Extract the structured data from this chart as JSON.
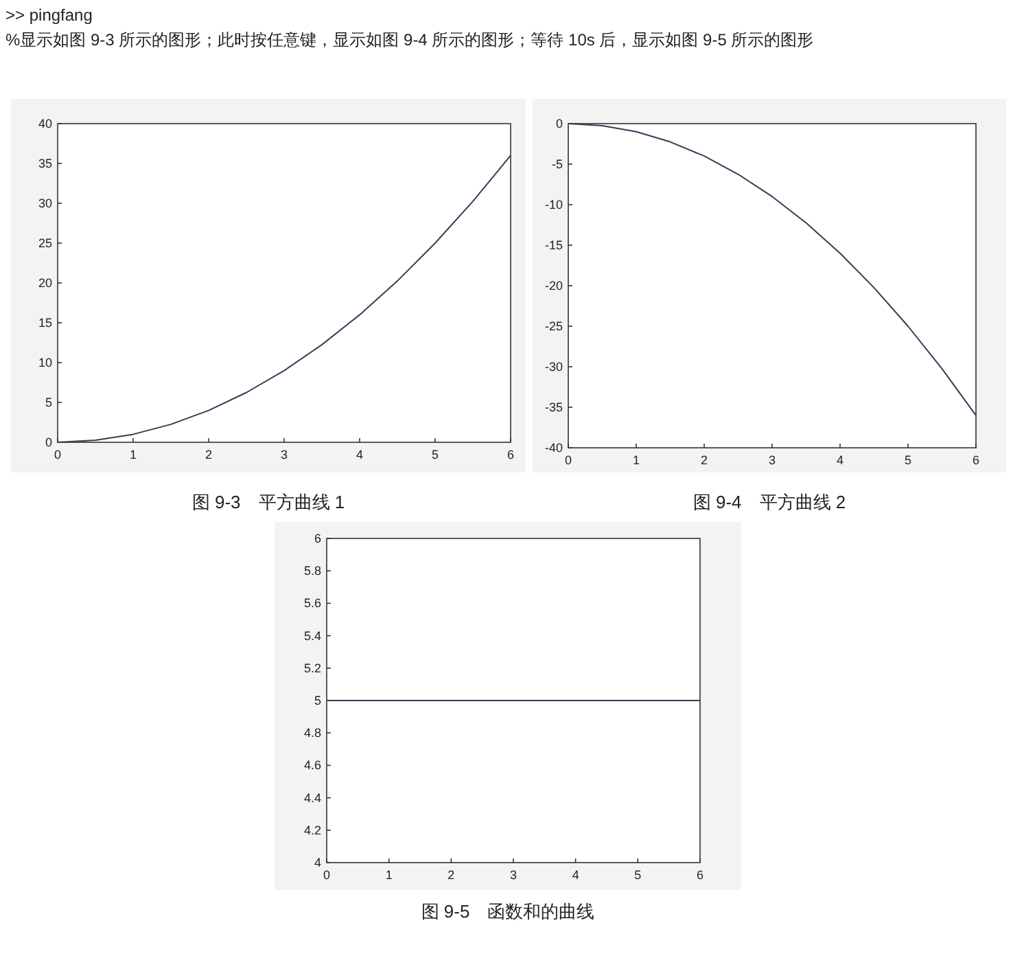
{
  "chart_data": [
    {
      "type": "line",
      "title": "图 9-3　平方曲线 1",
      "annotations": [
        ">> pingfang",
        "%显示如图 9-3 所示的图形；此时按任意键，显示如图 9-4 所示的图形；等待 10s 后，显示如图 9-5 所示的图形"
      ],
      "x": [
        0,
        0.5,
        1,
        1.5,
        2,
        2.5,
        3,
        3.5,
        4,
        4.5,
        5,
        5.5,
        6
      ],
      "series": [
        {
          "color": "#3a3a55",
          "values": [
            0,
            0.25,
            1,
            2.25,
            4,
            6.25,
            9,
            12.25,
            16,
            20.25,
            25,
            30.25,
            36
          ]
        }
      ],
      "xlim": [
        0,
        6
      ],
      "xticks": [
        0,
        1,
        2,
        3,
        4,
        5,
        6
      ],
      "ylim": [
        0,
        40
      ],
      "yticks": [
        0,
        5,
        10,
        15,
        20,
        25,
        30,
        35,
        40
      ],
      "grid": false
    },
    {
      "type": "line",
      "title": "图 9-4　平方曲线 2",
      "x": [
        0,
        0.5,
        1,
        1.5,
        2,
        2.5,
        3,
        3.5,
        4,
        4.5,
        5,
        5.5,
        6
      ],
      "series": [
        {
          "color": "#3a3a55",
          "values": [
            0,
            -0.25,
            -1,
            -2.25,
            -4,
            -6.25,
            -9,
            -12.25,
            -16,
            -20.25,
            -25,
            -30.25,
            -36
          ]
        }
      ],
      "xlim": [
        0,
        6
      ],
      "xticks": [
        0,
        1,
        2,
        3,
        4,
        5,
        6
      ],
      "ylim": [
        -40,
        0
      ],
      "yticks": [
        -40,
        -35,
        -30,
        -25,
        -20,
        -15,
        -10,
        -5,
        0
      ],
      "grid": false
    },
    {
      "type": "line",
      "title": "图 9-5　函数和的曲线",
      "x": [
        0,
        6
      ],
      "series": [
        {
          "color": "#3a3a55",
          "values": [
            5,
            5
          ]
        }
      ],
      "xlim": [
        0,
        6
      ],
      "xticks": [
        0,
        1,
        2,
        3,
        4,
        5,
        6
      ],
      "ylim": [
        4,
        6
      ],
      "yticks": [
        4,
        4.2,
        4.4,
        4.6,
        4.8,
        5,
        5.2,
        5.4,
        5.6,
        5.8,
        6
      ],
      "grid": false
    }
  ]
}
